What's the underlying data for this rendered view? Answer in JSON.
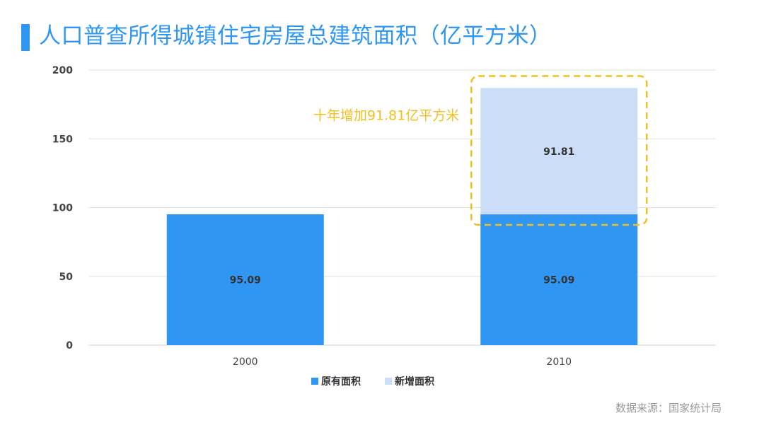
{
  "header": {
    "title": "人口普查所得城镇住宅房屋总建筑面积（亿平方米）"
  },
  "chart_data": {
    "type": "bar",
    "stacked": true,
    "categories": [
      "2000",
      "2010"
    ],
    "series": [
      {
        "name": "原有面积",
        "values": [
          95.09,
          95.09
        ],
        "color": "#2F97F3",
        "labels": [
          "95.09",
          "95.09"
        ]
      },
      {
        "name": "新增面积",
        "values": [
          0,
          91.81
        ],
        "color": "#CCDDF8",
        "labels": [
          "",
          "91.81"
        ]
      }
    ],
    "ylim": [
      0,
      200
    ],
    "yticks": [
      0,
      50,
      100,
      150,
      200
    ],
    "grid": true,
    "legend_position": "bottom",
    "annotation": {
      "text": "十年增加91.81亿平方米",
      "color": "#F5BE1E",
      "target_category": "2010",
      "target_series": "新增面积"
    }
  },
  "footer": {
    "source": "数据来源：国家统计局"
  }
}
